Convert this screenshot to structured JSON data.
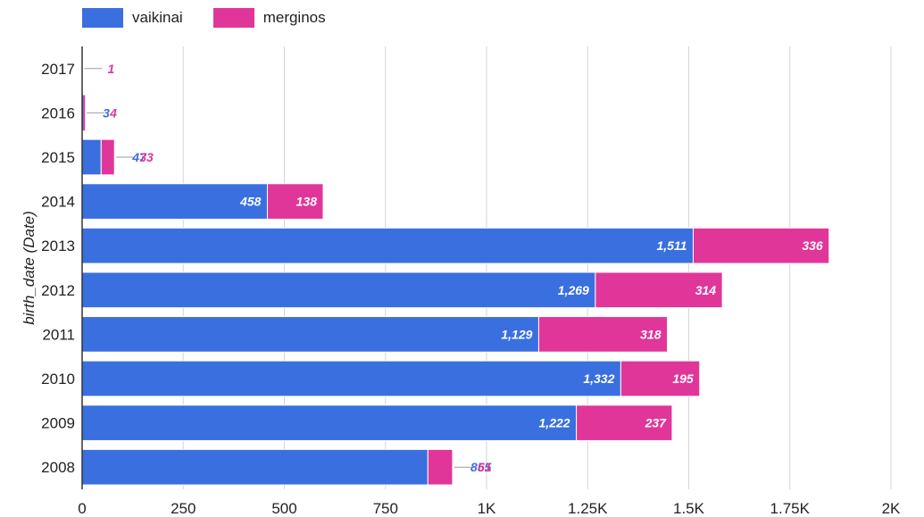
{
  "chart_data": {
    "type": "bar",
    "orientation": "horizontal",
    "stacked": true,
    "categories": [
      "2017",
      "2016",
      "2015",
      "2014",
      "2013",
      "2012",
      "2011",
      "2010",
      "2009",
      "2008"
    ],
    "series": [
      {
        "name": "vaikinai",
        "color": "#3a6fe0",
        "values": [
          0,
          3,
          47,
          458,
          1511,
          1269,
          1129,
          1332,
          1222,
          855
        ],
        "labels": [
          "",
          "3",
          "47",
          "458",
          "1,511",
          "1,269",
          "1,129",
          "1,332",
          "1,222",
          "855"
        ]
      },
      {
        "name": "merginos",
        "color": "#e0369a",
        "values": [
          1,
          4,
          33,
          138,
          336,
          314,
          318,
          195,
          237,
          61
        ],
        "labels": [
          "1",
          "4",
          "33",
          "138",
          "336",
          "314",
          "318",
          "195",
          "237",
          "61"
        ]
      }
    ],
    "xlim": [
      0,
      2000
    ],
    "xticks": [
      {
        "value": 0,
        "label": "0"
      },
      {
        "value": 250,
        "label": "250"
      },
      {
        "value": 500,
        "label": "500"
      },
      {
        "value": 750,
        "label": "750"
      },
      {
        "value": 1000,
        "label": "1K"
      },
      {
        "value": 1250,
        "label": "1.25K"
      },
      {
        "value": 1500,
        "label": "1.5K"
      },
      {
        "value": 1750,
        "label": "1.75K"
      },
      {
        "value": 2000,
        "label": "2K"
      }
    ],
    "ylabel": "birth_date (Date)",
    "xlabel": "",
    "grid": true,
    "legend_position": "top-left"
  }
}
